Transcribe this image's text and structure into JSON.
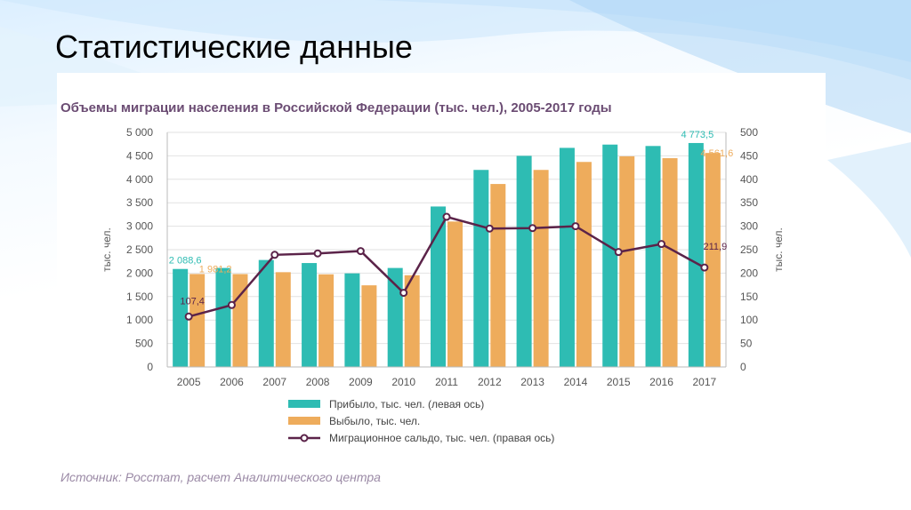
{
  "slide": {
    "title": "Статистические данные"
  },
  "colors": {
    "arrivals": "#2ebcb3",
    "departures": "#eeac5c",
    "balance": "#5b2349",
    "title_text": "#6b4c73",
    "axis_text": "#555555",
    "source_text": "#9b8aa6"
  },
  "chart_data": {
    "type": "bar",
    "title": "Объемы миграции населения в Российской Федерации (тыс. чел.), 2005-2017 годы",
    "categories": [
      "2005",
      "2006",
      "2007",
      "2008",
      "2009",
      "2010",
      "2011",
      "2012",
      "2013",
      "2014",
      "2015",
      "2016",
      "2017"
    ],
    "series": [
      {
        "name": "Прибыло, тыс. чел. (левая ось)",
        "axis": "left",
        "type": "bar",
        "values": [
          2088.6,
          2110,
          2280,
          2215,
          1995,
          2110,
          3420,
          4200,
          4500,
          4670,
          4740,
          4710,
          4773.5
        ]
      },
      {
        "name": "Выбыло, тыс. чел.",
        "axis": "left",
        "type": "bar",
        "values": [
          1981.2,
          1980,
          2020,
          1975,
          1740,
          1955,
          3100,
          3900,
          4200,
          4370,
          4490,
          4450,
          4561.6
        ]
      },
      {
        "name": "Миграционное сальдо, тыс. чел. (правая ось)",
        "axis": "right",
        "type": "line",
        "values": [
          107.4,
          132,
          239,
          242,
          247,
          158,
          320,
          295,
          296,
          300,
          245,
          262,
          211.9
        ]
      }
    ],
    "left_axis": {
      "label": "тыс. чел.",
      "ylim": [
        0,
        5000
      ],
      "ticks": [
        "0",
        "500",
        "1 000",
        "1 500",
        "2 000",
        "2 500",
        "3 000",
        "3 500",
        "4 000",
        "4 500",
        "5 000"
      ]
    },
    "right_axis": {
      "label": "тыс. чел.",
      "ylim": [
        0,
        500
      ],
      "ticks": [
        "0",
        "50",
        "100",
        "150",
        "200",
        "250",
        "300",
        "350",
        "400",
        "450",
        "500"
      ]
    },
    "data_labels": {
      "arrivals_first": "2 088,6",
      "departures_first": "1 981,2",
      "balance_first": "107,4",
      "arrivals_last": "4 773,5",
      "departures_last": "4 561,6",
      "balance_last": "211,9"
    },
    "grid": true,
    "legend_placement": "bottom",
    "source": "Источник: Росстат, расчет Аналитического центра"
  }
}
